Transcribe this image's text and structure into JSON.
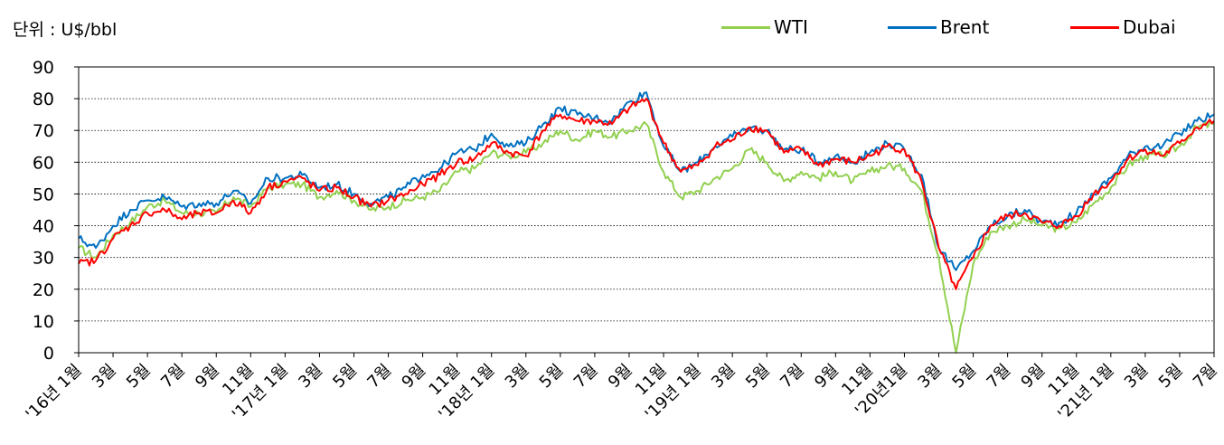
{
  "chart_data": {
    "type": "line",
    "unit_label": "단위 : U$/bbl",
    "ylim": [
      0,
      90
    ],
    "yticks": [
      "0",
      "10",
      "20",
      "30",
      "40",
      "50",
      "60",
      "70",
      "80",
      "90"
    ],
    "grid": "horizontal dotted",
    "legend_position": "top-right",
    "x_range": [
      "2016-01",
      "2021-07"
    ],
    "xtick_labels": [
      "'16년 1월",
      "3월",
      "5월",
      "7월",
      "9월",
      "11월",
      "'17년 1월",
      "3월",
      "5월",
      "7월",
      "9월",
      "11월",
      "'18년 1월",
      "3월",
      "5월",
      "7월",
      "9월",
      "11월",
      "'19년 1월",
      "3월",
      "5월",
      "7월",
      "9월",
      "11월",
      "'20년1월",
      "3월",
      "5월",
      "7월",
      "9월",
      "11월",
      "'21년 1월",
      "3월",
      "5월",
      "7월"
    ],
    "x": [
      "2016-01",
      "2016-02",
      "2016-03",
      "2016-04",
      "2016-05",
      "2016-06",
      "2016-07",
      "2016-08",
      "2016-09",
      "2016-10",
      "2016-11",
      "2016-12",
      "2017-01",
      "2017-02",
      "2017-03",
      "2017-04",
      "2017-05",
      "2017-06",
      "2017-07",
      "2017-08",
      "2017-09",
      "2017-10",
      "2017-11",
      "2017-12",
      "2018-01",
      "2018-02",
      "2018-03",
      "2018-04",
      "2018-05",
      "2018-06",
      "2018-07",
      "2018-08",
      "2018-09",
      "2018-10",
      "2018-11",
      "2018-12",
      "2019-01",
      "2019-02",
      "2019-03",
      "2019-04",
      "2019-05",
      "2019-06",
      "2019-07",
      "2019-08",
      "2019-09",
      "2019-10",
      "2019-11",
      "2019-12",
      "2020-01",
      "2020-02",
      "2020-03",
      "2020-04",
      "2020-05",
      "2020-06",
      "2020-07",
      "2020-08",
      "2020-09",
      "2020-10",
      "2020-11",
      "2020-12",
      "2021-01",
      "2021-02",
      "2021-03",
      "2021-04",
      "2021-05",
      "2021-06",
      "2021-07"
    ],
    "series": [
      {
        "name": "WTI",
        "color": "#92d050",
        "values": [
          33,
          30,
          37,
          41,
          46,
          48,
          44,
          44,
          44,
          49,
          46,
          52,
          53,
          53,
          49,
          51,
          48,
          45,
          46,
          48,
          49,
          51,
          57,
          58,
          63,
          62,
          63,
          66,
          70,
          67,
          70,
          68,
          70,
          72,
          57,
          49,
          51,
          55,
          58,
          64,
          60,
          54,
          57,
          55,
          57,
          54,
          57,
          59,
          58,
          51,
          30,
          0,
          28,
          38,
          40,
          42,
          40,
          39,
          41,
          47,
          52,
          59,
          62,
          62,
          65,
          71,
          72
        ]
      },
      {
        "name": "Brent",
        "color": "#0070c0",
        "values": [
          36,
          33,
          40,
          45,
          48,
          49,
          46,
          47,
          47,
          51,
          47,
          55,
          55,
          56,
          52,
          53,
          50,
          47,
          49,
          52,
          56,
          58,
          63,
          64,
          69,
          65,
          66,
          72,
          77,
          75,
          74,
          73,
          79,
          82,
          65,
          57,
          60,
          65,
          68,
          71,
          70,
          64,
          64,
          60,
          62,
          60,
          63,
          66,
          64,
          56,
          33,
          26,
          32,
          40,
          43,
          45,
          41,
          41,
          44,
          50,
          55,
          62,
          65,
          65,
          69,
          73,
          75
        ]
      },
      {
        "name": "Dubai",
        "color": "#ff0000",
        "values": [
          28,
          29,
          36,
          40,
          44,
          45,
          42,
          44,
          44,
          48,
          44,
          52,
          54,
          55,
          51,
          52,
          49,
          46,
          48,
          50,
          53,
          56,
          60,
          61,
          66,
          63,
          62,
          70,
          75,
          73,
          73,
          72,
          77,
          80,
          66,
          57,
          59,
          65,
          67,
          71,
          70,
          63,
          64,
          59,
          61,
          60,
          62,
          65,
          64,
          54,
          33,
          20,
          30,
          40,
          43,
          44,
          41,
          40,
          43,
          50,
          54,
          61,
          64,
          62,
          66,
          71,
          73
        ]
      }
    ]
  }
}
